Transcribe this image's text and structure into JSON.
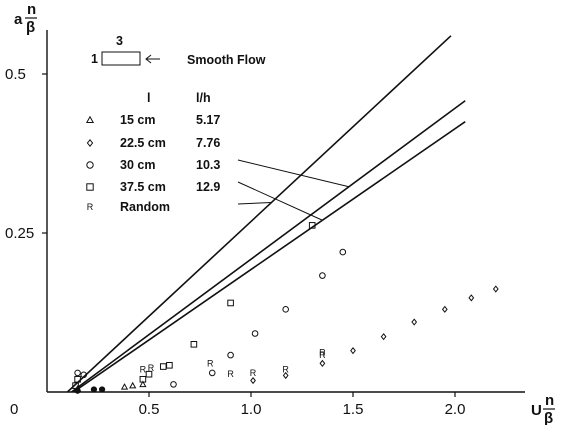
{
  "chart_data": {
    "type": "scatter",
    "title": "",
    "xlabel": {
      "main": "U",
      "numerator": "n",
      "denominator": "β"
    },
    "ylabel": {
      "main": "a",
      "numerator": "n",
      "denominator": "β"
    },
    "xlim": [
      0,
      2.25
    ],
    "ylim": [
      0,
      0.6
    ],
    "x_ticks": [
      {
        "value": 0,
        "label": "0"
      },
      {
        "value": 0.5,
        "label": "0.5"
      },
      {
        "value": 1.0,
        "label": "1.0"
      },
      {
        "value": 1.5,
        "label": "1.5"
      },
      {
        "value": 2.0,
        "label": "2.0"
      }
    ],
    "y_ticks": [
      {
        "value": 0.25,
        "label": "0.25"
      },
      {
        "value": 0.5,
        "label": "0.5"
      }
    ],
    "grid": false,
    "legend_position": "top-left",
    "inset": {
      "number": "3",
      "side_label": "1",
      "text": "Smooth Flow"
    },
    "legend_headers": [
      "l",
      "l/h"
    ],
    "series": [
      {
        "name": "15 cm",
        "ratio": "5.17",
        "marker": "triangle",
        "points": [
          [
            0.15,
            0.005
          ],
          [
            0.38,
            0.008
          ],
          [
            0.42,
            0.01
          ],
          [
            0.47,
            0.012
          ]
        ],
        "fit_line": [
          [
            0.1,
            0.0
          ],
          [
            1.98,
            0.56
          ]
        ]
      },
      {
        "name": "22.5 cm",
        "ratio": "7.76",
        "marker": "diamond",
        "points": [
          [
            1.01,
            0.018
          ],
          [
            1.17,
            0.026
          ],
          [
            1.35,
            0.045
          ],
          [
            1.5,
            0.065
          ],
          [
            1.65,
            0.087
          ],
          [
            1.8,
            0.11
          ],
          [
            1.95,
            0.13
          ],
          [
            2.08,
            0.148
          ],
          [
            2.2,
            0.162
          ]
        ],
        "fit_line": [
          [
            0.12,
            0.0
          ],
          [
            2.05,
            0.458
          ]
        ]
      },
      {
        "name": "30 cm",
        "ratio": "10.3",
        "marker": "circle",
        "points": [
          [
            0.15,
            0.03
          ],
          [
            0.18,
            0.027
          ],
          [
            0.62,
            0.012
          ],
          [
            0.81,
            0.03
          ],
          [
            0.9,
            0.058
          ],
          [
            1.02,
            0.092
          ],
          [
            1.17,
            0.13
          ],
          [
            1.35,
            0.183
          ],
          [
            1.45,
            0.22
          ]
        ],
        "fit_line": [
          [
            0.13,
            0.0
          ],
          [
            2.05,
            0.425
          ]
        ]
      },
      {
        "name": "37.5 cm",
        "ratio": "12.9",
        "marker": "square",
        "points": [
          [
            0.14,
            0.01
          ],
          [
            0.15,
            0.02
          ],
          [
            0.47,
            0.02
          ],
          [
            0.5,
            0.028
          ],
          [
            0.57,
            0.04
          ],
          [
            0.6,
            0.042
          ],
          [
            0.72,
            0.075
          ],
          [
            0.9,
            0.14
          ],
          [
            1.3,
            0.262
          ]
        ],
        "fit_line": null
      },
      {
        "name": "Random",
        "ratio": "",
        "marker": "R",
        "points": [
          [
            0.47,
            0.035
          ],
          [
            0.51,
            0.038
          ],
          [
            0.8,
            0.045
          ],
          [
            0.9,
            0.028
          ],
          [
            1.01,
            0.03
          ],
          [
            1.17,
            0.035
          ],
          [
            1.35,
            0.058
          ],
          [
            1.35,
            0.062
          ]
        ],
        "fit_line": null
      }
    ],
    "filled_points": [
      [
        0.23,
        0.004
      ],
      [
        0.27,
        0.004
      ],
      [
        0.15,
        0.002
      ]
    ]
  }
}
